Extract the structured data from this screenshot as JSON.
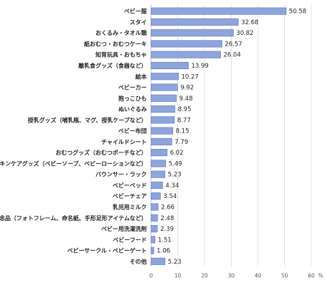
{
  "chart_data": {
    "type": "bar",
    "orientation": "horizontal",
    "categories": [
      "ベビー服",
      "スタイ",
      "おくるみ・タオル類",
      "紙おむつ・おむつケーキ",
      "知育玩具・おもちゃ",
      "離乳食グッズ（食器など）",
      "絵本",
      "ベビーカー",
      "抱っこひも",
      "ぬいぐるみ",
      "授乳グッズ（哺乳瓶、マグ、授乳ケープなど）",
      "ベビー布団",
      "チャイルドシート",
      "おむつグッズ（おむつポーチなど）",
      "スキンケアグッズ（ベビーソープ、ベビーローションなど）",
      "バウンサー・ラック",
      "ベビーベッド",
      "ベビーチェア",
      "乳児用ミルク",
      "記念品（フォトフレーム、命名紙、手形足形アイテムなど）",
      "ベビー用洗濯洗剤",
      "ベビーフード",
      "ベビーサークル・ベビーゲート",
      "その他"
    ],
    "values": [
      50.58,
      32.68,
      30.82,
      26.57,
      26.04,
      13.99,
      10.27,
      9.92,
      9.48,
      8.95,
      8.77,
      8.15,
      7.79,
      6.02,
      5.49,
      5.23,
      4.34,
      3.54,
      2.66,
      2.48,
      2.39,
      1.51,
      1.06,
      5.23
    ],
    "value_labels": [
      "50.58",
      "32.68",
      "30.82",
      "26.57",
      "26.04",
      "13.99",
      "10.27",
      "9.92",
      "9.48",
      "8.95",
      "8.77",
      "8.15",
      "7.79",
      "6.02",
      "5.49",
      "5.23",
      "4.34",
      "3.54",
      "2.66",
      "2.48",
      "2.39",
      "1.51",
      "1.06",
      "5.23"
    ],
    "xlim": [
      0,
      60
    ],
    "xticks": [
      0,
      10,
      20,
      30,
      40,
      50,
      60
    ],
    "x_unit": "%",
    "grid": true,
    "legend": "none",
    "bar_color": "#8ea4dc",
    "bar_border_color": "#5f78b8"
  }
}
